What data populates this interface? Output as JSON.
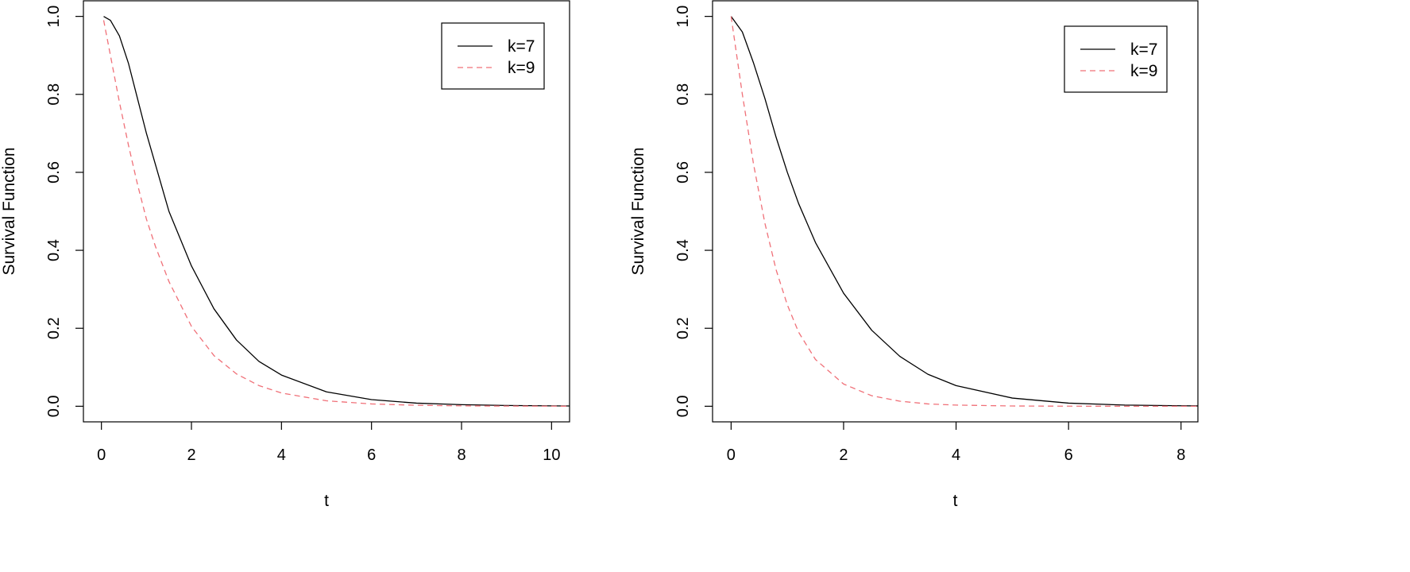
{
  "chart_data": [
    {
      "type": "line",
      "xlabel": "t",
      "ylabel": "Survival Function",
      "xlim": [
        -0.4,
        10.4
      ],
      "ylim": [
        -0.04,
        1.04
      ],
      "x_ticks": [
        0,
        2,
        4,
        6,
        8,
        10
      ],
      "y_ticks": [
        0.0,
        0.2,
        0.4,
        0.6,
        0.8,
        1.0
      ],
      "x_tick_labels": [
        "0",
        "2",
        "4",
        "6",
        "8",
        "10"
      ],
      "y_tick_labels": [
        "0.0",
        "0.2",
        "0.4",
        "0.6",
        "0.8",
        "1.0"
      ],
      "grid": false,
      "legend_position": "top-right",
      "series": [
        {
          "name": "k=7",
          "color": "#000000",
          "dash": "solid",
          "x": [
            0.05,
            0.2,
            0.4,
            0.6,
            0.8,
            1.0,
            1.2,
            1.5,
            2.0,
            2.5,
            3.0,
            3.5,
            4.0,
            5.0,
            6.0,
            7.0,
            8.0,
            9.0,
            10.0,
            10.4
          ],
          "y": [
            1.0,
            0.99,
            0.95,
            0.88,
            0.79,
            0.7,
            0.62,
            0.5,
            0.36,
            0.25,
            0.17,
            0.115,
            0.08,
            0.037,
            0.017,
            0.008,
            0.004,
            0.002,
            0.001,
            0.0007
          ]
        },
        {
          "name": "k=9",
          "color": "#f07078",
          "dash": "dashed",
          "x": [
            0.05,
            0.2,
            0.4,
            0.6,
            0.8,
            1.0,
            1.2,
            1.5,
            2.0,
            2.5,
            3.0,
            3.5,
            4.0,
            5.0,
            6.0,
            7.0,
            8.0,
            9.0,
            10.0,
            10.4
          ],
          "y": [
            0.99,
            0.9,
            0.78,
            0.67,
            0.57,
            0.48,
            0.41,
            0.32,
            0.205,
            0.13,
            0.083,
            0.053,
            0.034,
            0.014,
            0.006,
            0.0025,
            0.001,
            0.0005,
            0.0002,
            0.0001
          ]
        }
      ]
    },
    {
      "type": "line",
      "xlabel": "t",
      "ylabel": "Survival Function",
      "xlim": [
        -0.33,
        8.3
      ],
      "ylim": [
        -0.04,
        1.04
      ],
      "x_ticks": [
        0,
        2,
        4,
        6,
        8
      ],
      "y_ticks": [
        0.0,
        0.2,
        0.4,
        0.6,
        0.8,
        1.0
      ],
      "x_tick_labels": [
        "0",
        "2",
        "4",
        "6",
        "8"
      ],
      "y_tick_labels": [
        "0.0",
        "0.2",
        "0.4",
        "0.6",
        "0.8",
        "1.0"
      ],
      "grid": false,
      "legend_position": "top-right",
      "series": [
        {
          "name": "k=7",
          "color": "#000000",
          "dash": "solid",
          "x": [
            0.0,
            0.2,
            0.4,
            0.6,
            0.8,
            1.0,
            1.2,
            1.5,
            2.0,
            2.5,
            3.0,
            3.5,
            4.0,
            5.0,
            6.0,
            7.0,
            8.0,
            8.3
          ],
          "y": [
            1.0,
            0.96,
            0.88,
            0.79,
            0.69,
            0.6,
            0.52,
            0.42,
            0.29,
            0.195,
            0.128,
            0.082,
            0.053,
            0.021,
            0.008,
            0.003,
            0.0012,
            0.0009
          ]
        },
        {
          "name": "k=9",
          "color": "#f07078",
          "dash": "dashed",
          "x": [
            0.0,
            0.1,
            0.2,
            0.4,
            0.6,
            0.8,
            1.0,
            1.2,
            1.5,
            2.0,
            2.5,
            3.0,
            3.5,
            4.0,
            5.0,
            6.0,
            7.0,
            8.0,
            8.3
          ],
          "y": [
            1.0,
            0.9,
            0.8,
            0.62,
            0.47,
            0.35,
            0.26,
            0.19,
            0.12,
            0.057,
            0.027,
            0.013,
            0.006,
            0.003,
            0.0007,
            0.0002,
            5e-05,
            1e-05,
            0.0
          ]
        }
      ]
    }
  ]
}
